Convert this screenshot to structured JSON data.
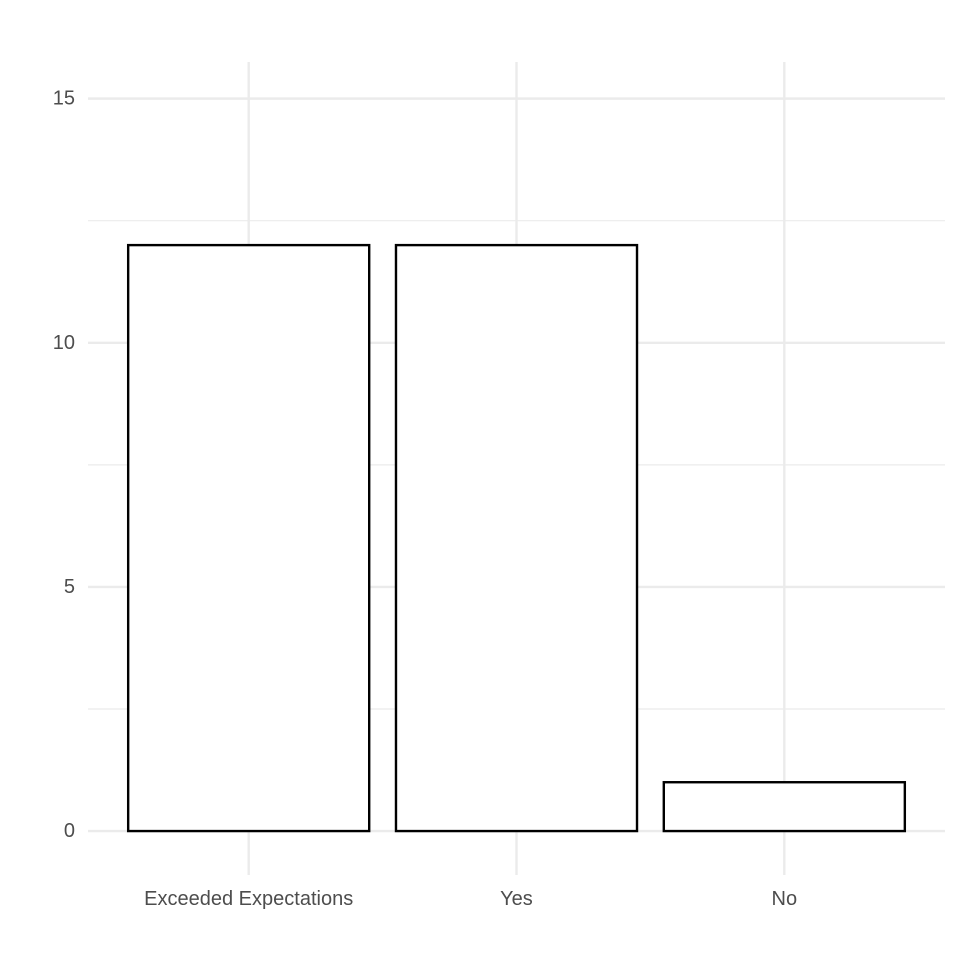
{
  "chart_data": {
    "type": "bar",
    "categories": [
      "Exceeded Expectations",
      "Yes",
      "No"
    ],
    "values": [
      12,
      12,
      1
    ],
    "ylim": [
      -0.9,
      15.75
    ],
    "yticks": [
      0,
      5,
      10,
      15
    ],
    "yminor": [
      2.5,
      7.5,
      12.5
    ],
    "grid": true,
    "colors": {
      "bar_fill": "#ffffff",
      "bar_stroke": "#000000",
      "grid": "#ebebeb",
      "text": "#4d4d4d"
    }
  }
}
